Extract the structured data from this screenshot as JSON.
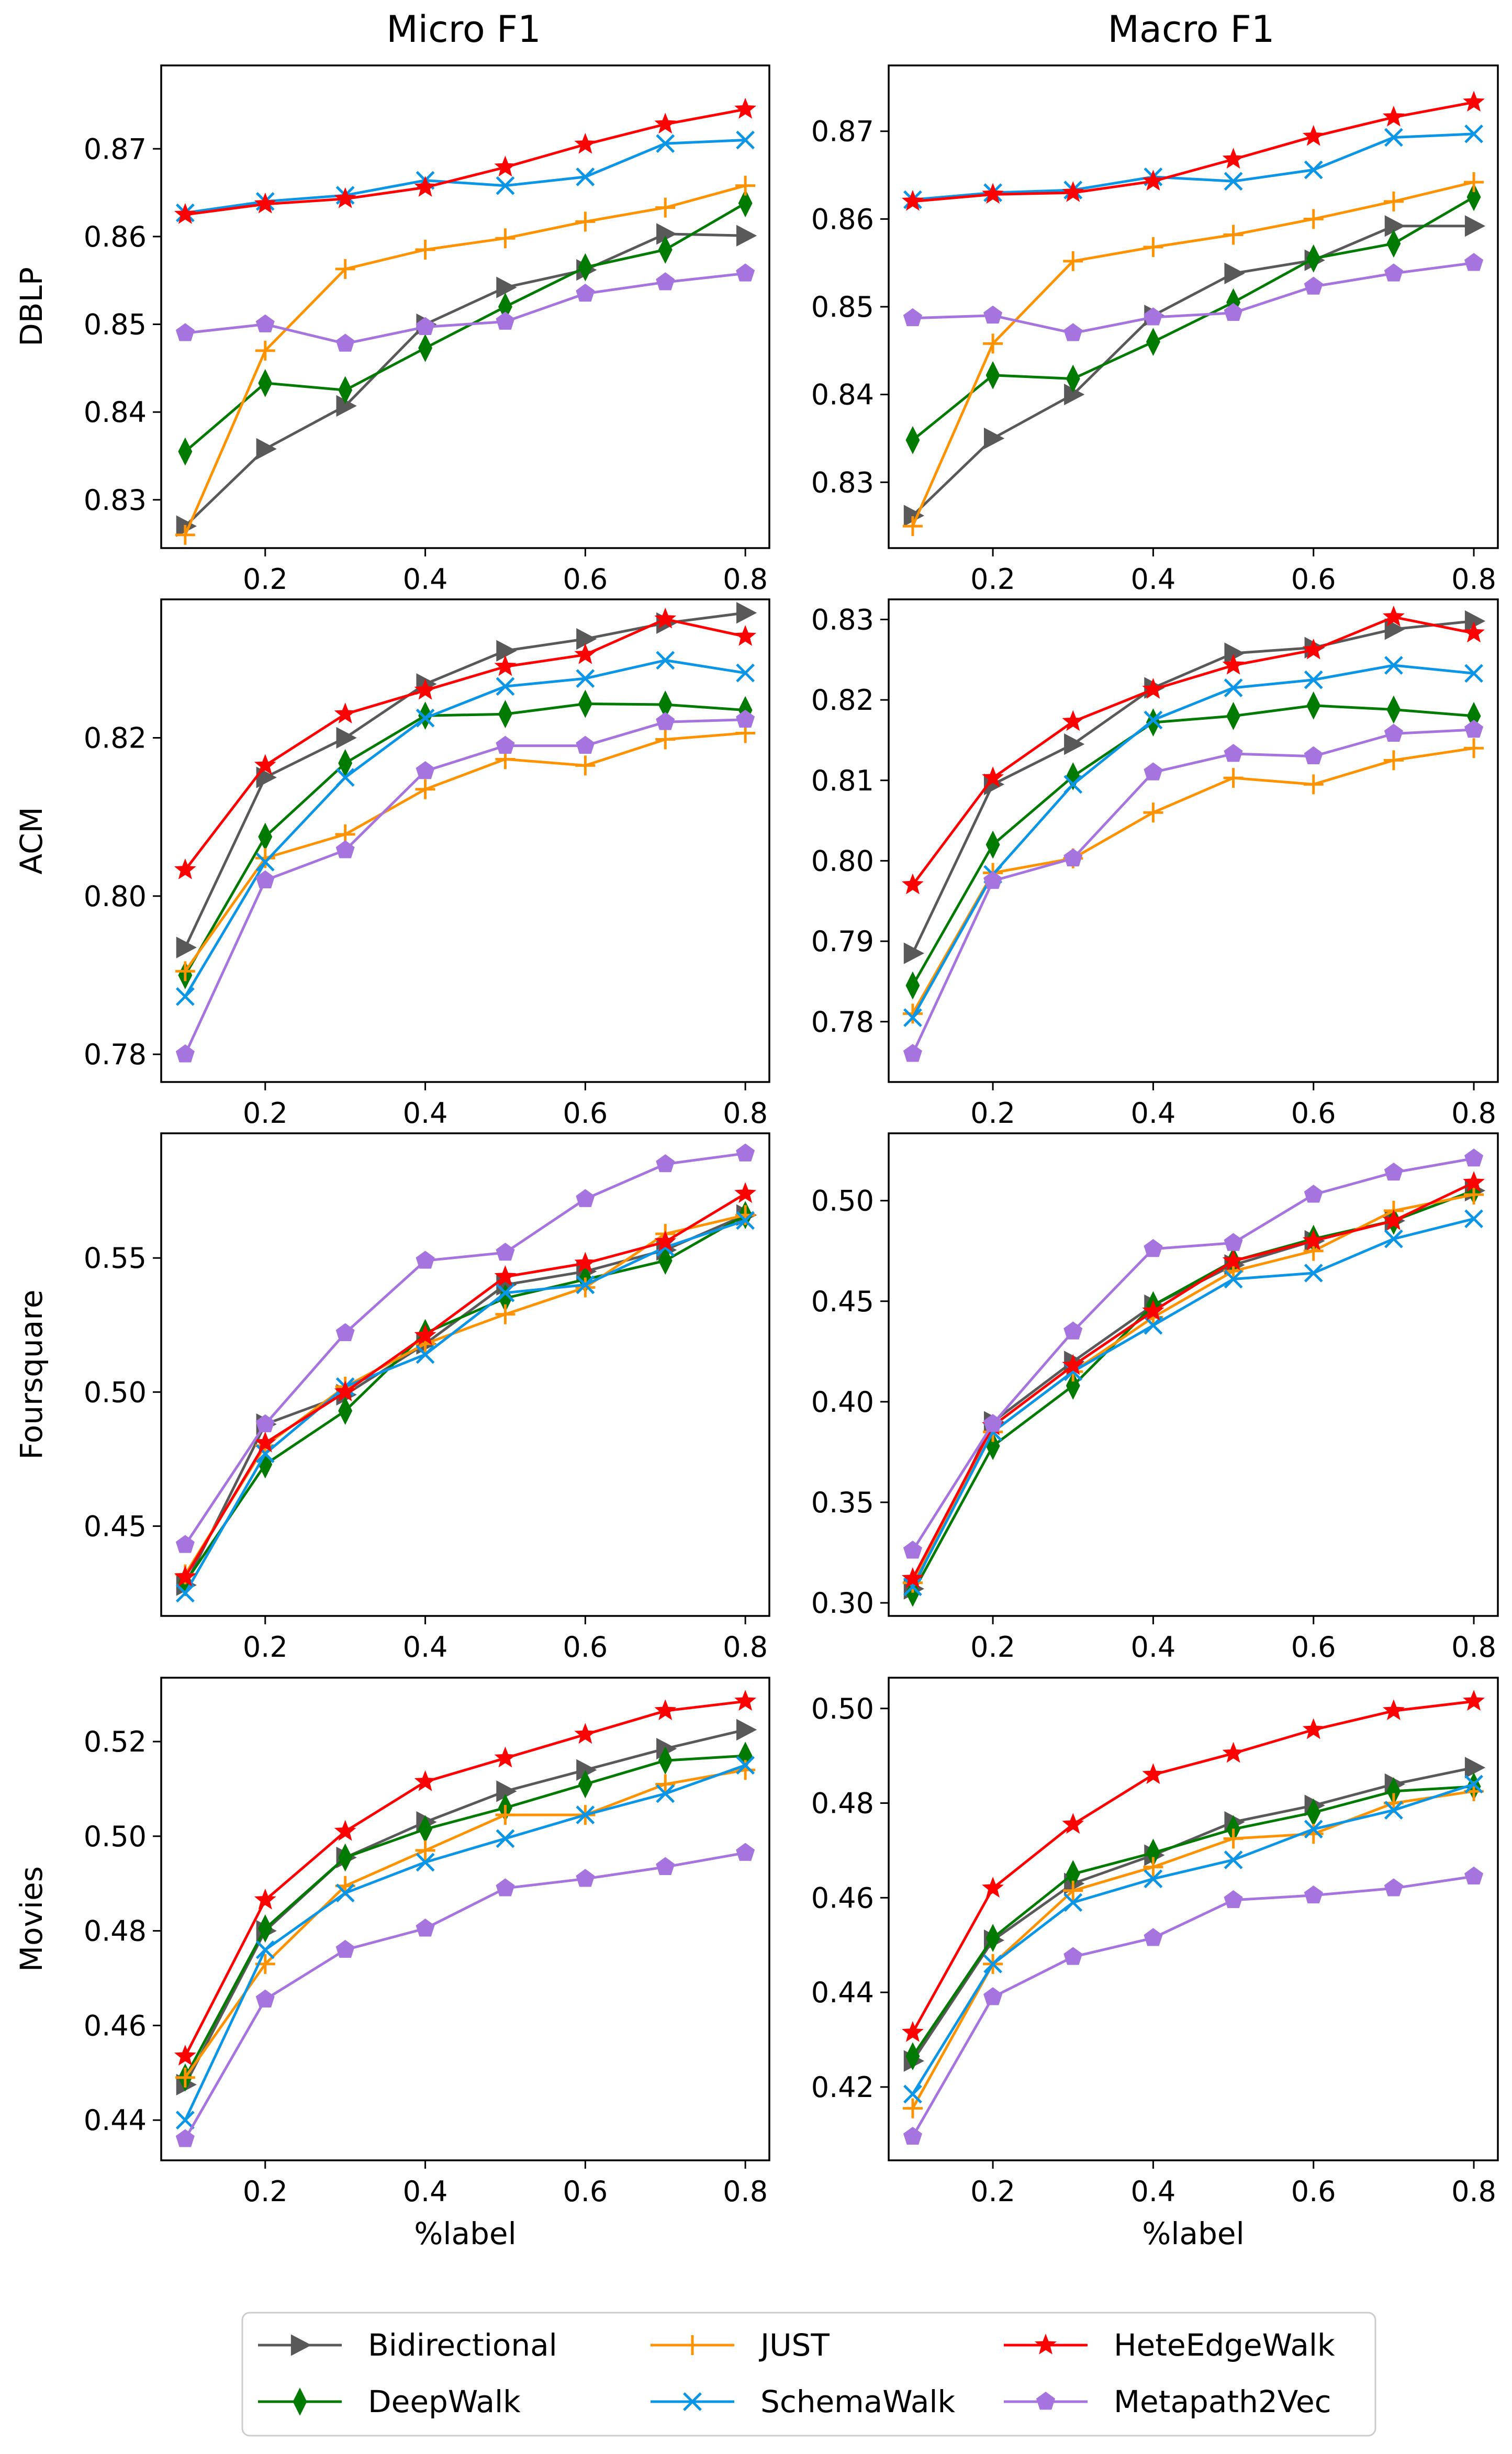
{
  "column_titles": [
    "Micro F1",
    "Macro F1"
  ],
  "row_labels": [
    "DBLP",
    "ACM",
    "Foursquare",
    "Movies"
  ],
  "xlabel": "%label",
  "legend": {
    "placement": "bottom-center",
    "entries": [
      "Bidirectional",
      "DeepWalk",
      "JUST",
      "SchemaWalk",
      "HeteEdgeWalk",
      "Metapath2Vec"
    ]
  },
  "series_style": {
    "Bidirectional": {
      "color": "#595959",
      "marker": "triangle-right"
    },
    "DeepWalk": {
      "color": "#007a00",
      "marker": "thin-diamond"
    },
    "JUST": {
      "color": "#ff9200",
      "marker": "plus"
    },
    "SchemaWalk": {
      "color": "#0a95e6",
      "marker": "x"
    },
    "HeteEdgeWalk": {
      "color": "#ff0000",
      "marker": "star"
    },
    "Metapath2Vec": {
      "color": "#a674df",
      "marker": "pentagon"
    }
  },
  "chart_data": [
    {
      "type": "line",
      "dataset": "DBLP",
      "metric": "Micro F1",
      "x": [
        0.1,
        0.2,
        0.3,
        0.4,
        0.5,
        0.6,
        0.7,
        0.8
      ],
      "xlim": [
        0.07,
        0.83
      ],
      "ylim": [
        0.8245,
        0.8795
      ],
      "xticks": [
        "0.2",
        "0.4",
        "0.6",
        "0.8"
      ],
      "yticks": [
        "0.83",
        "0.84",
        "0.85",
        "0.86",
        "0.87"
      ],
      "series": [
        {
          "name": "Bidirectional",
          "values": [
            0.827,
            0.8358,
            0.8407,
            0.85,
            0.8542,
            0.8562,
            0.8603,
            0.8601
          ]
        },
        {
          "name": "DeepWalk",
          "values": [
            0.8355,
            0.8433,
            0.8425,
            0.8473,
            0.852,
            0.8565,
            0.8585,
            0.8638
          ]
        },
        {
          "name": "JUST",
          "values": [
            0.826,
            0.847,
            0.8563,
            0.8585,
            0.8598,
            0.8617,
            0.8633,
            0.8658
          ]
        },
        {
          "name": "SchemaWalk",
          "values": [
            0.8627,
            0.864,
            0.8647,
            0.8664,
            0.8658,
            0.8668,
            0.8706,
            0.871
          ]
        },
        {
          "name": "HeteEdgeWalk",
          "values": [
            0.8625,
            0.8637,
            0.8643,
            0.8656,
            0.8679,
            0.8705,
            0.8728,
            0.8745
          ]
        },
        {
          "name": "Metapath2Vec",
          "values": [
            0.849,
            0.85,
            0.8478,
            0.8497,
            0.8503,
            0.8535,
            0.8548,
            0.8558
          ]
        }
      ]
    },
    {
      "type": "line",
      "dataset": "DBLP",
      "metric": "Macro F1",
      "x": [
        0.1,
        0.2,
        0.3,
        0.4,
        0.5,
        0.6,
        0.7,
        0.8
      ],
      "xlim": [
        0.07,
        0.83
      ],
      "ylim": [
        0.8225,
        0.8775
      ],
      "xticks": [
        "0.2",
        "0.4",
        "0.6",
        "0.8"
      ],
      "yticks": [
        "0.83",
        "0.84",
        "0.85",
        "0.86",
        "0.87"
      ],
      "series": [
        {
          "name": "Bidirectional",
          "values": [
            0.8262,
            0.835,
            0.84,
            0.849,
            0.8538,
            0.8553,
            0.8592,
            0.8592
          ]
        },
        {
          "name": "DeepWalk",
          "values": [
            0.8348,
            0.8422,
            0.8418,
            0.846,
            0.8505,
            0.8555,
            0.8572,
            0.8625
          ]
        },
        {
          "name": "JUST",
          "values": [
            0.825,
            0.8458,
            0.8552,
            0.8568,
            0.8582,
            0.86,
            0.862,
            0.8642
          ]
        },
        {
          "name": "SchemaWalk",
          "values": [
            0.8622,
            0.863,
            0.8633,
            0.8648,
            0.8643,
            0.8656,
            0.8693,
            0.8697
          ]
        },
        {
          "name": "HeteEdgeWalk",
          "values": [
            0.862,
            0.8628,
            0.863,
            0.8643,
            0.8668,
            0.8694,
            0.8716,
            0.8733
          ]
        },
        {
          "name": "Metapath2Vec",
          "values": [
            0.8487,
            0.849,
            0.847,
            0.8488,
            0.8493,
            0.8523,
            0.8538,
            0.855
          ]
        }
      ]
    },
    {
      "type": "line",
      "dataset": "ACM",
      "metric": "Micro F1",
      "x": [
        0.1,
        0.2,
        0.3,
        0.4,
        0.5,
        0.6,
        0.7,
        0.8
      ],
      "xlim": [
        0.07,
        0.83
      ],
      "ylim": [
        0.7765,
        0.8375
      ],
      "xticks": [
        "0.2",
        "0.4",
        "0.6",
        "0.8"
      ],
      "yticks": [
        "0.78",
        "0.80",
        "0.82"
      ],
      "series": [
        {
          "name": "Bidirectional",
          "values": [
            0.7935,
            0.815,
            0.82,
            0.8268,
            0.831,
            0.8325,
            0.8345,
            0.8358
          ]
        },
        {
          "name": "DeepWalk",
          "values": [
            0.79,
            0.8075,
            0.8168,
            0.8228,
            0.823,
            0.8243,
            0.8242,
            0.8235
          ]
        },
        {
          "name": "JUST",
          "values": [
            0.7905,
            0.8048,
            0.8078,
            0.8135,
            0.8173,
            0.8165,
            0.8198,
            0.8206
          ]
        },
        {
          "name": "SchemaWalk",
          "values": [
            0.7873,
            0.8043,
            0.815,
            0.8225,
            0.8265,
            0.8275,
            0.8298,
            0.8282
          ]
        },
        {
          "name": "HeteEdgeWalk",
          "values": [
            0.8033,
            0.8165,
            0.823,
            0.826,
            0.829,
            0.8305,
            0.835,
            0.8328
          ]
        },
        {
          "name": "Metapath2Vec",
          "values": [
            0.78,
            0.802,
            0.8058,
            0.8158,
            0.819,
            0.819,
            0.822,
            0.8223
          ]
        }
      ]
    },
    {
      "type": "line",
      "dataset": "ACM",
      "metric": "Macro F1",
      "x": [
        0.1,
        0.2,
        0.3,
        0.4,
        0.5,
        0.6,
        0.7,
        0.8
      ],
      "xlim": [
        0.07,
        0.83
      ],
      "ylim": [
        0.7725,
        0.8325
      ],
      "xticks": [
        "0.2",
        "0.4",
        "0.6",
        "0.8"
      ],
      "yticks": [
        "0.78",
        "0.79",
        "0.80",
        "0.81",
        "0.82",
        "0.83"
      ],
      "series": [
        {
          "name": "Bidirectional",
          "values": [
            0.7885,
            0.8095,
            0.8145,
            0.8215,
            0.8258,
            0.8265,
            0.8288,
            0.8298
          ]
        },
        {
          "name": "DeepWalk",
          "values": [
            0.7845,
            0.802,
            0.8105,
            0.8172,
            0.818,
            0.8193,
            0.8188,
            0.818
          ]
        },
        {
          "name": "JUST",
          "values": [
            0.781,
            0.7985,
            0.8003,
            0.806,
            0.8103,
            0.8095,
            0.8125,
            0.814
          ]
        },
        {
          "name": "SchemaWalk",
          "values": [
            0.7805,
            0.7983,
            0.8095,
            0.8175,
            0.8215,
            0.8225,
            0.8243,
            0.8233
          ]
        },
        {
          "name": "HeteEdgeWalk",
          "values": [
            0.797,
            0.8103,
            0.8173,
            0.8213,
            0.8243,
            0.8262,
            0.8303,
            0.8283
          ]
        },
        {
          "name": "Metapath2Vec",
          "values": [
            0.776,
            0.7975,
            0.8003,
            0.811,
            0.8133,
            0.813,
            0.8158,
            0.8163
          ]
        }
      ]
    },
    {
      "type": "line",
      "dataset": "Foursquare",
      "metric": "Micro F1",
      "x": [
        0.1,
        0.2,
        0.3,
        0.4,
        0.5,
        0.6,
        0.7,
        0.8
      ],
      "xlim": [
        0.07,
        0.83
      ],
      "ylim": [
        0.4165,
        0.5965
      ],
      "xticks": [
        "0.2",
        "0.4",
        "0.6",
        "0.8"
      ],
      "yticks": [
        "0.45",
        "0.50",
        "0.55"
      ],
      "series": [
        {
          "name": "Bidirectional",
          "values": [
            0.428,
            0.488,
            0.499,
            0.518,
            0.54,
            0.545,
            0.553,
            0.566
          ]
        },
        {
          "name": "DeepWalk",
          "values": [
            0.429,
            0.473,
            0.493,
            0.522,
            0.535,
            0.542,
            0.549,
            0.566
          ]
        },
        {
          "name": "JUST",
          "values": [
            0.432,
            0.48,
            0.502,
            0.518,
            0.529,
            0.539,
            0.559,
            0.566
          ]
        },
        {
          "name": "SchemaWalk",
          "values": [
            0.425,
            0.477,
            0.502,
            0.514,
            0.537,
            0.54,
            0.554,
            0.564
          ]
        },
        {
          "name": "HeteEdgeWalk",
          "values": [
            0.431,
            0.481,
            0.5,
            0.521,
            0.543,
            0.548,
            0.556,
            0.574
          ]
        },
        {
          "name": "Metapath2Vec",
          "values": [
            0.443,
            0.488,
            0.522,
            0.549,
            0.552,
            0.572,
            0.585,
            0.589
          ]
        }
      ]
    },
    {
      "type": "line",
      "dataset": "Foursquare",
      "metric": "Macro F1",
      "x": [
        0.1,
        0.2,
        0.3,
        0.4,
        0.5,
        0.6,
        0.7,
        0.8
      ],
      "xlim": [
        0.07,
        0.83
      ],
      "ylim": [
        0.2935,
        0.5335
      ],
      "xticks": [
        "0.2",
        "0.4",
        "0.6",
        "0.8"
      ],
      "yticks": [
        "0.30",
        "0.35",
        "0.40",
        "0.45",
        "0.50"
      ],
      "series": [
        {
          "name": "Bidirectional",
          "values": [
            0.307,
            0.39,
            0.42,
            0.448,
            0.468,
            0.48,
            0.49,
            0.505
          ]
        },
        {
          "name": "DeepWalk",
          "values": [
            0.305,
            0.378,
            0.408,
            0.448,
            0.47,
            0.481,
            0.49,
            0.505
          ]
        },
        {
          "name": "JUST",
          "values": [
            0.31,
            0.385,
            0.415,
            0.442,
            0.465,
            0.475,
            0.495,
            0.503
          ]
        },
        {
          "name": "SchemaWalk",
          "values": [
            0.308,
            0.385,
            0.415,
            0.438,
            0.461,
            0.464,
            0.481,
            0.491
          ]
        },
        {
          "name": "HeteEdgeWalk",
          "values": [
            0.312,
            0.388,
            0.418,
            0.445,
            0.47,
            0.48,
            0.49,
            0.509
          ]
        },
        {
          "name": "Metapath2Vec",
          "values": [
            0.326,
            0.389,
            0.435,
            0.476,
            0.479,
            0.503,
            0.514,
            0.521
          ]
        }
      ]
    },
    {
      "type": "line",
      "dataset": "Movies",
      "metric": "Micro F1",
      "x": [
        0.1,
        0.2,
        0.3,
        0.4,
        0.5,
        0.6,
        0.7,
        0.8
      ],
      "xlim": [
        0.07,
        0.83
      ],
      "ylim": [
        0.4315,
        0.5335
      ],
      "xticks": [
        "0.2",
        "0.4",
        "0.6",
        "0.8"
      ],
      "yticks": [
        "0.44",
        "0.46",
        "0.48",
        "0.50",
        "0.52"
      ],
      "series": [
        {
          "name": "Bidirectional",
          "values": [
            0.4475,
            0.48,
            0.4955,
            0.503,
            0.5095,
            0.514,
            0.5185,
            0.5225
          ]
        },
        {
          "name": "DeepWalk",
          "values": [
            0.449,
            0.4805,
            0.4955,
            0.5015,
            0.506,
            0.511,
            0.516,
            0.517
          ]
        },
        {
          "name": "JUST",
          "values": [
            0.449,
            0.473,
            0.4895,
            0.497,
            0.5045,
            0.5045,
            0.511,
            0.514
          ]
        },
        {
          "name": "SchemaWalk",
          "values": [
            0.44,
            0.476,
            0.488,
            0.4945,
            0.4995,
            0.5045,
            0.509,
            0.515
          ]
        },
        {
          "name": "HeteEdgeWalk",
          "values": [
            0.4535,
            0.4865,
            0.501,
            0.5115,
            0.5165,
            0.5215,
            0.5265,
            0.5285
          ]
        },
        {
          "name": "Metapath2Vec",
          "values": [
            0.436,
            0.4655,
            0.476,
            0.4805,
            0.489,
            0.491,
            0.4935,
            0.4965
          ]
        }
      ]
    },
    {
      "type": "line",
      "dataset": "Movies",
      "metric": "Macro F1",
      "x": [
        0.1,
        0.2,
        0.3,
        0.4,
        0.5,
        0.6,
        0.7,
        0.8
      ],
      "xlim": [
        0.07,
        0.83
      ],
      "ylim": [
        0.4045,
        0.5065
      ],
      "xticks": [
        "0.2",
        "0.4",
        "0.6",
        "0.8"
      ],
      "yticks": [
        "0.42",
        "0.44",
        "0.46",
        "0.48",
        "0.50"
      ],
      "series": [
        {
          "name": "Bidirectional",
          "values": [
            0.4255,
            0.451,
            0.463,
            0.469,
            0.476,
            0.4795,
            0.484,
            0.4875
          ]
        },
        {
          "name": "DeepWalk",
          "values": [
            0.4265,
            0.4515,
            0.465,
            0.4695,
            0.4745,
            0.478,
            0.4825,
            0.4835
          ]
        },
        {
          "name": "JUST",
          "values": [
            0.4155,
            0.446,
            0.4615,
            0.4665,
            0.4725,
            0.4735,
            0.48,
            0.4825
          ]
        },
        {
          "name": "SchemaWalk",
          "values": [
            0.4185,
            0.446,
            0.459,
            0.464,
            0.468,
            0.4745,
            0.4785,
            0.484
          ]
        },
        {
          "name": "HeteEdgeWalk",
          "values": [
            0.4315,
            0.462,
            0.4755,
            0.486,
            0.4905,
            0.4955,
            0.4995,
            0.5015
          ]
        },
        {
          "name": "Metapath2Vec",
          "values": [
            0.4095,
            0.439,
            0.4475,
            0.4515,
            0.4595,
            0.4605,
            0.462,
            0.4645
          ]
        }
      ]
    }
  ]
}
